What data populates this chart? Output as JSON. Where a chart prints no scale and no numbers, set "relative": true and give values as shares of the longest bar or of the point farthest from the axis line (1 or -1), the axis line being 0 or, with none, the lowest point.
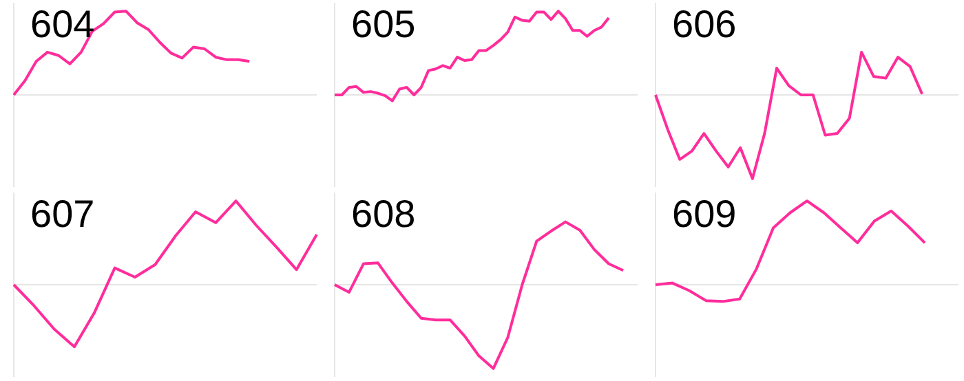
{
  "chart_data": [
    {
      "type": "line",
      "title": "604",
      "relative": true,
      "color": "#ff2d9b",
      "categories": [
        null,
        null,
        null,
        null,
        null,
        null,
        null,
        null,
        null,
        null,
        null,
        null,
        null,
        null,
        null,
        null,
        null,
        null,
        null,
        null,
        null,
        null,
        null,
        null,
        null,
        null,
        null,
        null
      ],
      "values": [
        0,
        0.17,
        0.4,
        0.51,
        0.47,
        0.37,
        0.51,
        0.76,
        0.85,
        0.99,
        1,
        0.86,
        0.78,
        0.63,
        0.5,
        0.44,
        0.57,
        0.55,
        0.45,
        0.42,
        0.42,
        0.4,
        null,
        null,
        null,
        null,
        null,
        null
      ]
    },
    {
      "type": "line",
      "title": "605",
      "relative": true,
      "color": "#ff2d9b",
      "categories": [
        null,
        null,
        null,
        null,
        null,
        null,
        null,
        null,
        null,
        null,
        null,
        null,
        null,
        null,
        null,
        null,
        null,
        null,
        null,
        null,
        null,
        null,
        null,
        null,
        null,
        null,
        null,
        null,
        null,
        null,
        null,
        null,
        null,
        null,
        null,
        null,
        null,
        null,
        null,
        null,
        null,
        null,
        null
      ],
      "values": [
        0,
        0,
        0.09,
        0.1,
        0.03,
        0.04,
        0.02,
        -0.01,
        -0.07,
        0.07,
        0.09,
        0,
        0.09,
        0.29,
        0.31,
        0.35,
        0.32,
        0.45,
        0.41,
        0.42,
        0.53,
        0.53,
        0.59,
        0.66,
        0.75,
        0.93,
        0.89,
        0.88,
        0.99,
        0.99,
        0.9,
        1,
        0.91,
        0.77,
        0.77,
        0.7,
        0.77,
        0.81,
        0.92,
        null,
        null,
        null,
        null
      ]
    },
    {
      "type": "line",
      "title": "606",
      "relative": true,
      "color": "#ff2d9b",
      "categories": [
        null,
        null,
        null,
        null,
        null,
        null,
        null,
        null,
        null,
        null,
        null,
        null,
        null,
        null,
        null,
        null,
        null,
        null,
        null,
        null,
        null,
        null,
        null,
        null,
        null,
        null
      ],
      "values": [
        0,
        -0.41,
        -0.77,
        -0.67,
        -0.46,
        -0.67,
        -0.86,
        -0.63,
        -1,
        -0.46,
        0.32,
        0.11,
        0,
        0,
        -0.48,
        -0.46,
        -0.28,
        0.51,
        0.22,
        0.2,
        0.45,
        0.34,
        0.01,
        null,
        null,
        null
      ]
    },
    {
      "type": "line",
      "title": "607",
      "relative": true,
      "color": "#ff2d9b",
      "categories": [
        null,
        null,
        null,
        null,
        null,
        null,
        null,
        null,
        null,
        null,
        null,
        null,
        null,
        null,
        null,
        null
      ],
      "values": [
        0,
        -0.25,
        -0.53,
        -0.74,
        -0.33,
        0.2,
        0.09,
        0.24,
        0.58,
        0.87,
        0.74,
        1,
        0.71,
        0.45,
        0.18,
        0.6
      ]
    },
    {
      "type": "line",
      "title": "608",
      "relative": true,
      "color": "#ff2d9b",
      "categories": [
        null,
        null,
        null,
        null,
        null,
        null,
        null,
        null,
        null,
        null,
        null,
        null,
        null,
        null,
        null,
        null,
        null,
        null,
        null,
        null,
        null,
        null
      ],
      "values": [
        0,
        -0.09,
        0.25,
        0.26,
        0.02,
        -0.2,
        -0.4,
        -0.42,
        -0.42,
        -0.61,
        -0.85,
        -1,
        -0.63,
        0,
        0.52,
        0.64,
        0.75,
        0.65,
        0.42,
        0.25,
        0.17,
        null
      ]
    },
    {
      "type": "line",
      "title": "609",
      "relative": true,
      "color": "#ff2d9b",
      "categories": [
        null,
        null,
        null,
        null,
        null,
        null,
        null,
        null,
        null,
        null,
        null,
        null,
        null,
        null,
        null,
        null,
        null,
        null,
        null
      ],
      "values": [
        0,
        0.02,
        -0.07,
        -0.19,
        -0.2,
        -0.17,
        0.19,
        0.68,
        0.86,
        1,
        0.86,
        0.68,
        0.5,
        0.76,
        0.88,
        0.7,
        0.5,
        null,
        null
      ]
    }
  ]
}
